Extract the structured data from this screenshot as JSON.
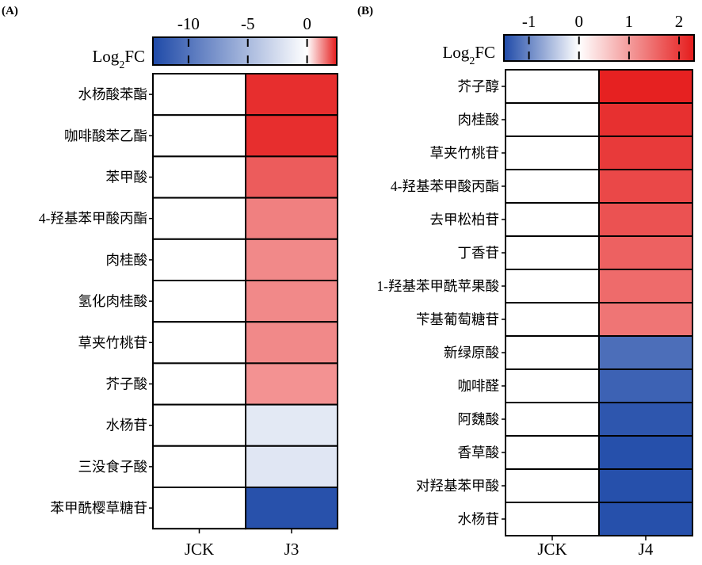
{
  "colors": {
    "low": "#1f4aa8",
    "mid": "#ffffff",
    "high": "#e51c1c"
  },
  "chart_data": [
    {
      "type": "heatmap",
      "panel_label": "(A)",
      "colorbar": {
        "title_main": "Log",
        "title_sub": "2",
        "title_suffix": "FC",
        "ticks": [
          -10,
          -5,
          0
        ],
        "tick_labels": [
          "-10",
          "-5",
          "0"
        ],
        "range": [
          -13,
          2.5
        ]
      },
      "columns": [
        "JCK",
        "J3"
      ],
      "rows": [
        "水杨酸苯酯",
        "咖啡酸苯乙酯",
        "苯甲酸",
        "4-羟基苯甲酸丙酯",
        "肉桂酸",
        "氢化肉桂酸",
        "草夹竹桃苷",
        "芥子酸",
        "水杨苷",
        "三没食子酸",
        "苯甲酰樱草糖苷"
      ],
      "values": [
        [
          0,
          2.3
        ],
        [
          0,
          2.3
        ],
        [
          0,
          1.8
        ],
        [
          0,
          1.4
        ],
        [
          0,
          1.3
        ],
        [
          0,
          1.3
        ],
        [
          0,
          1.3
        ],
        [
          0,
          1.2
        ],
        [
          0,
          -1.6
        ],
        [
          0,
          -1.8
        ],
        [
          0,
          -12.5
        ]
      ]
    },
    {
      "type": "heatmap",
      "panel_label": "(B)",
      "colorbar": {
        "title_main": "Log",
        "title_sub": "2",
        "title_suffix": "FC",
        "ticks": [
          -1,
          0,
          1,
          2
        ],
        "tick_labels": [
          "-1",
          "0",
          "1",
          "2"
        ],
        "range": [
          -1.5,
          2.3
        ]
      },
      "columns": [
        "JCK",
        "J4"
      ],
      "rows": [
        "芥子醇",
        "肉桂酸",
        "草夹竹桃苷",
        "4-羟基苯甲酸丙酯",
        "去甲松柏苷",
        "丁香苷",
        "1-羟基苯甲酰苹果酸",
        "苄基葡萄糖苷",
        "新绿原酸",
        "咖啡醛",
        "阿魏酸",
        "香草酸",
        "对羟基苯甲酸",
        "水杨苷"
      ],
      "values": [
        [
          0,
          2.25
        ],
        [
          0,
          2.1
        ],
        [
          0,
          2.0
        ],
        [
          0,
          1.85
        ],
        [
          0,
          1.75
        ],
        [
          0,
          1.6
        ],
        [
          0,
          1.5
        ],
        [
          0,
          1.4
        ],
        [
          0,
          -1.2
        ],
        [
          0,
          -1.3
        ],
        [
          0,
          -1.4
        ],
        [
          0,
          -1.45
        ],
        [
          0,
          -1.45
        ],
        [
          0,
          -1.45
        ]
      ]
    }
  ]
}
